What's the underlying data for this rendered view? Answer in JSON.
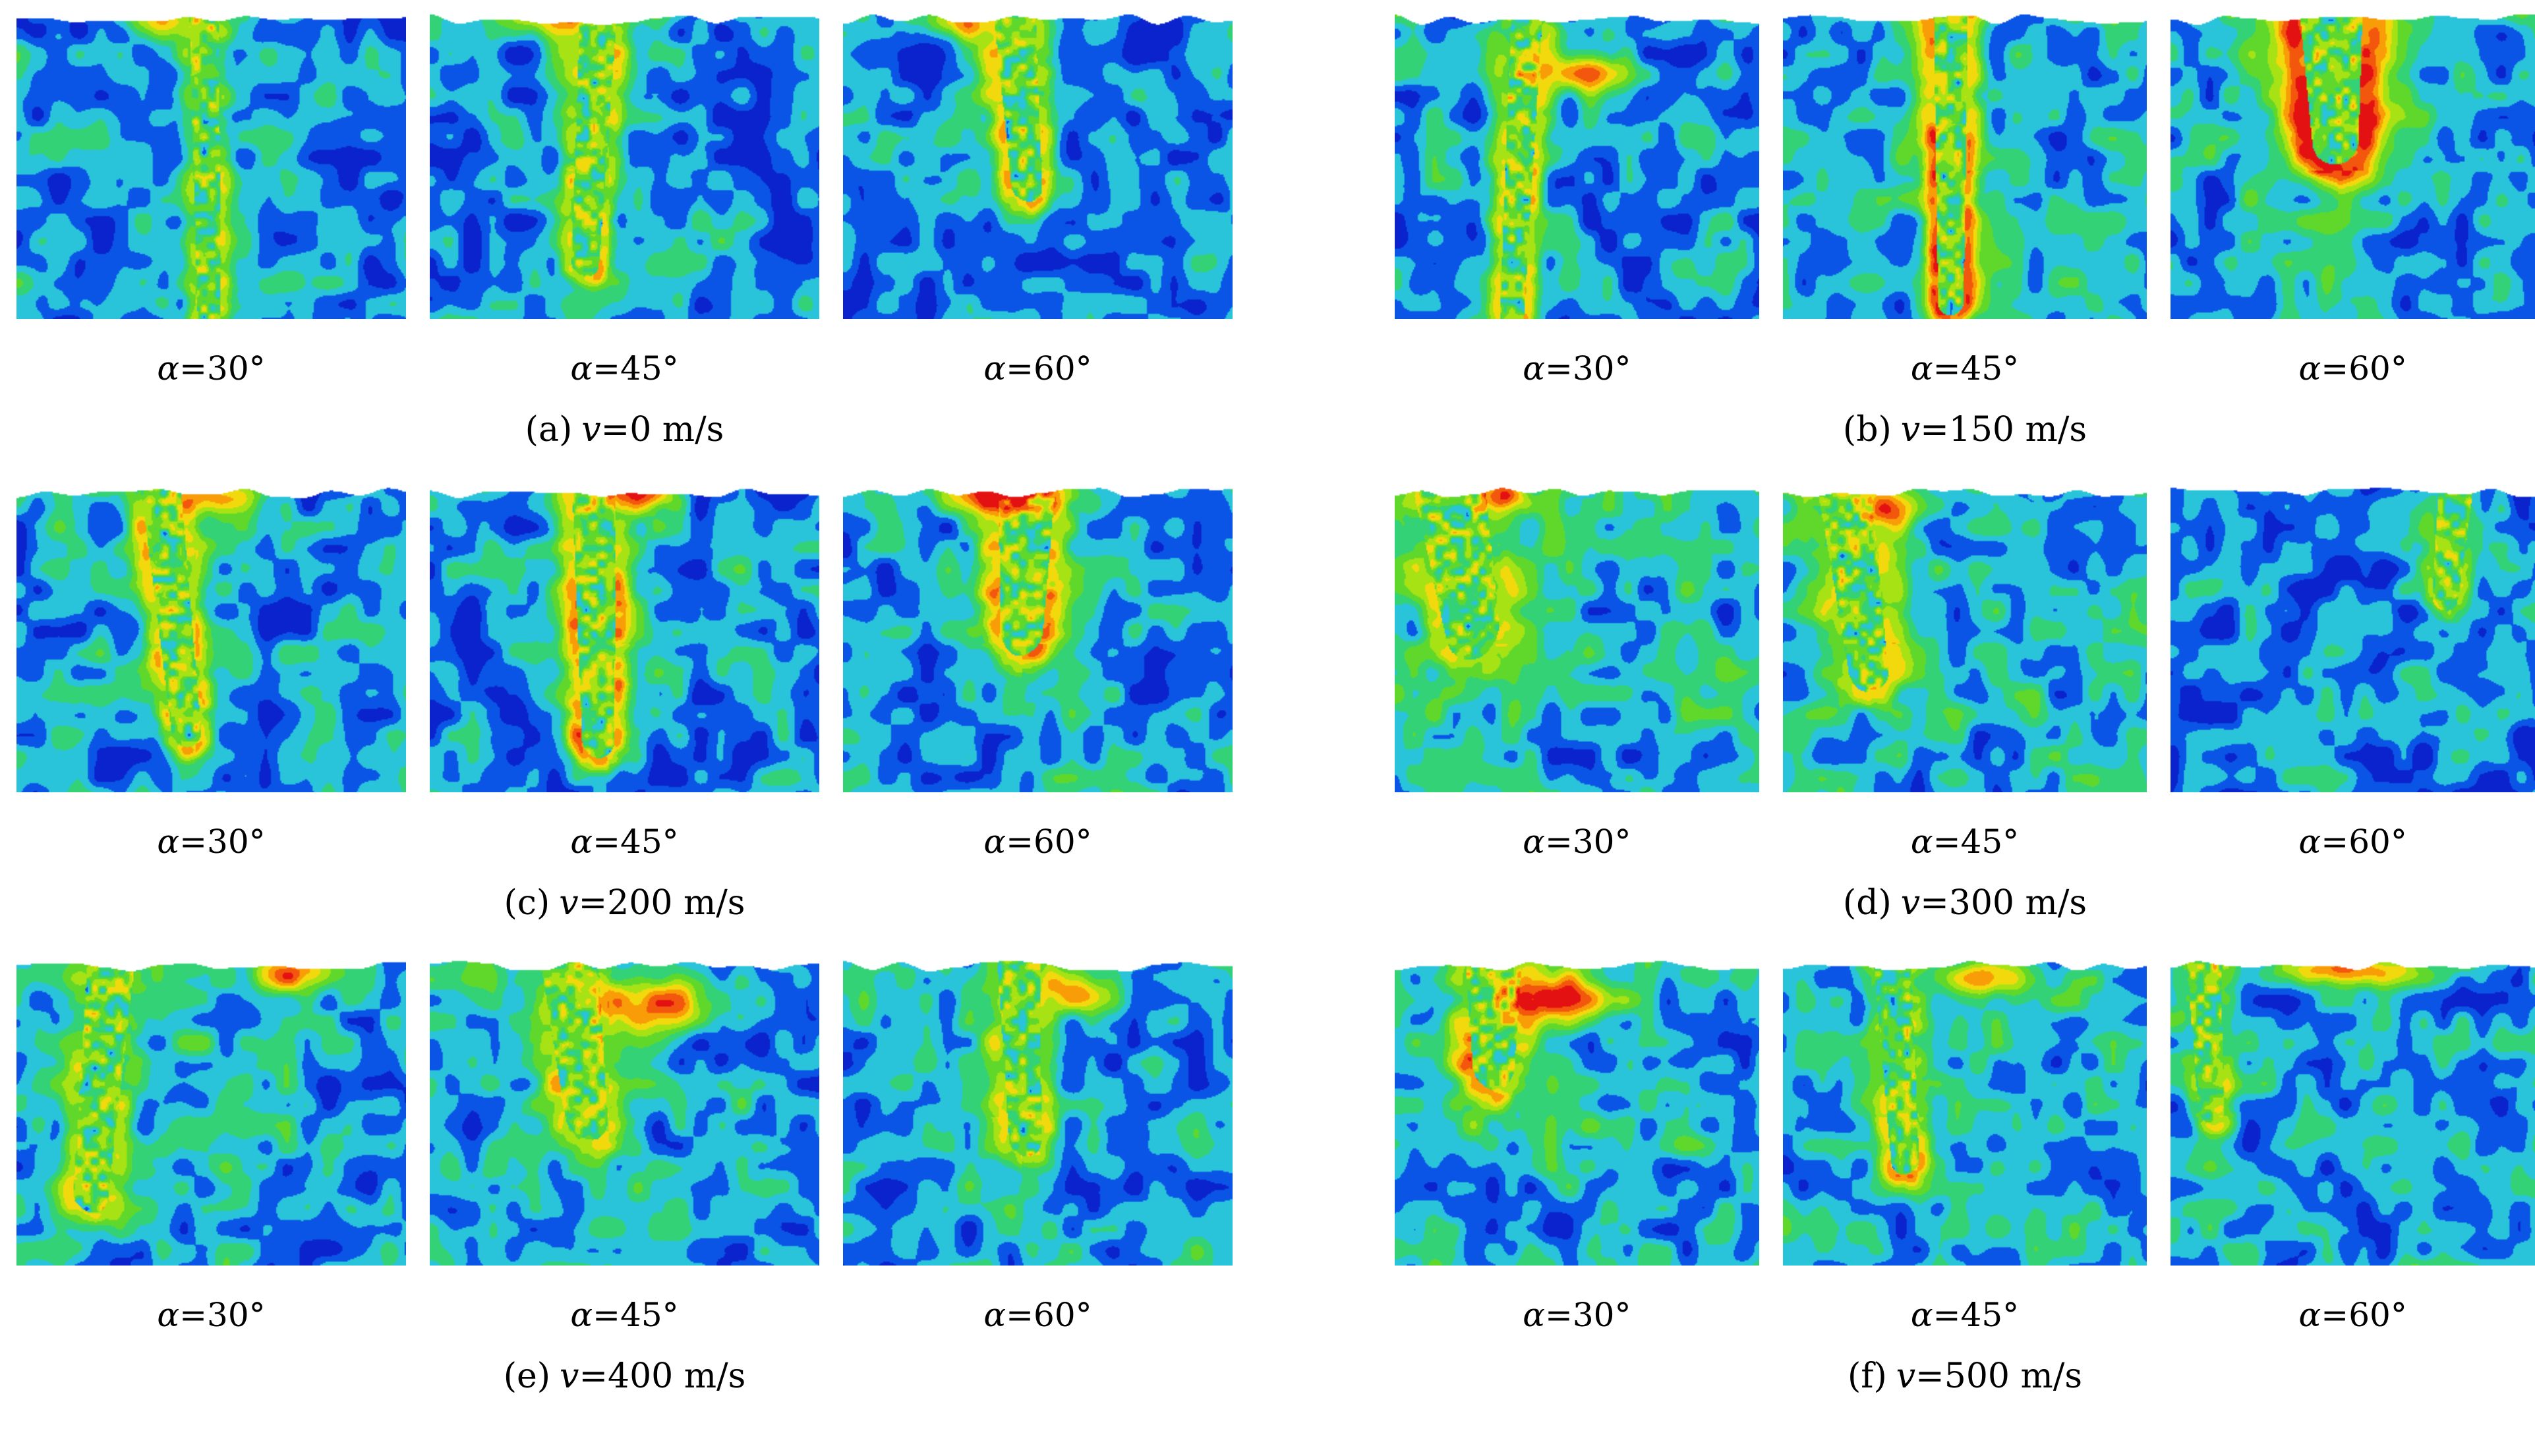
{
  "figure": {
    "colormap": [
      "#0a23cc",
      "#0b55e6",
      "#29c3da",
      "#33d277",
      "#5fd82b",
      "#a6e214",
      "#f2d90d",
      "#f89d07",
      "#f2570d",
      "#e31111"
    ],
    "panels": [
      {
        "caption": {
          "index": "(a)",
          "symbol": "v",
          "value": "=0 m/s"
        },
        "images": [
          {
            "label": {
              "symbol": "α",
              "value": "=30°"
            },
            "render": {
              "seed": 101,
              "ex": 0.48,
              "depth": 1.08,
              "rad": 0.045,
              "tilt": 1,
              "ring": 0.34,
              "halo": 0.08,
              "hot": [
                0.36,
                0.03,
                0.09,
                0.05,
                0.3
              ],
              "bias": 0
            }
          },
          {
            "label": {
              "symbol": "α",
              "value": "=45°"
            },
            "render": {
              "seed": 102,
              "ex": 0.43,
              "depth": 0.78,
              "rad": 0.055,
              "tilt": -3,
              "ring": 0.44,
              "halo": 0.1,
              "hot": [
                0.3,
                0.03,
                0.1,
                0.05,
                0.32
              ],
              "bias": 0
            }
          },
          {
            "label": {
              "symbol": "α",
              "value": "=60°"
            },
            "render": {
              "seed": 103,
              "ex": 0.44,
              "depth": 0.55,
              "rad": 0.062,
              "tilt": 4,
              "ring": 0.46,
              "halo": 0.12,
              "hot": [
                0.3,
                0.03,
                0.09,
                0.05,
                0.5
              ],
              "bias": 0
            }
          }
        ]
      },
      {
        "caption": {
          "index": "(b)",
          "symbol": "v",
          "value": "=150 m/s"
        },
        "images": [
          {
            "label": {
              "symbol": "α",
              "value": "=30°"
            },
            "render": {
              "seed": 104,
              "ex": 0.36,
              "depth": 1.08,
              "rad": 0.05,
              "tilt": -3,
              "ring": 0.42,
              "halo": 0.1,
              "hot": [
                0.52,
                0.2,
                0.13,
                0.06,
                0.55
              ],
              "bias": 0
            }
          },
          {
            "label": {
              "symbol": "α",
              "value": "=45°"
            },
            "render": {
              "seed": 105,
              "ex": 0.46,
              "depth": 0.93,
              "rad": 0.055,
              "tilt": 0,
              "ring": 0.52,
              "halo": 0.24,
              "hot": null,
              "bias": 0.02
            }
          },
          {
            "label": {
              "symbol": "α",
              "value": "=60°"
            },
            "render": {
              "seed": 106,
              "ex": 0.44,
              "depth": 0.4,
              "rad": 0.1,
              "tilt": 2,
              "ring": 0.62,
              "halo": 0.32,
              "hot": null,
              "bias": 0.02
            }
          }
        ]
      },
      {
        "caption": {
          "index": "(c)",
          "symbol": "v",
          "value": "=200 m/s"
        },
        "images": [
          {
            "label": {
              "symbol": "α",
              "value": "=30°"
            },
            "render": {
              "seed": 107,
              "ex": 0.37,
              "depth": 0.78,
              "rad": 0.06,
              "tilt": 6,
              "ring": 0.48,
              "halo": 0.12,
              "hot": [
                0.52,
                0.03,
                0.1,
                0.05,
                0.42
              ],
              "bias": 0
            }
          },
          {
            "label": {
              "symbol": "α",
              "value": "=45°"
            },
            "render": {
              "seed": 108,
              "ex": 0.42,
              "depth": 0.8,
              "rad": 0.065,
              "tilt": 1,
              "ring": 0.54,
              "halo": 0.15,
              "hot": [
                0.54,
                0.03,
                0.09,
                0.05,
                0.5
              ],
              "bias": 0
            }
          },
          {
            "label": {
              "symbol": "α",
              "value": "=60°"
            },
            "render": {
              "seed": 109,
              "ex": 0.47,
              "depth": 0.45,
              "rad": 0.085,
              "tilt": -2,
              "ring": 0.52,
              "halo": 0.18,
              "hot": [
                0.4,
                0.02,
                0.15,
                0.06,
                0.62
              ],
              "bias": 0
            }
          }
        ]
      },
      {
        "caption": {
          "index": "(d)",
          "symbol": "v",
          "value": "=300 m/s"
        },
        "images": [
          {
            "label": {
              "symbol": "α",
              "value": "=30°"
            },
            "render": {
              "seed": 110,
              "ex": 0.15,
              "depth": 0.45,
              "rad": 0.115,
              "tilt": 10,
              "ring": 0.28,
              "halo": 0.08,
              "hot": [
                0.3,
                0.04,
                0.07,
                0.05,
                0.55
              ],
              "bias": 0.05
            }
          },
          {
            "label": {
              "symbol": "α",
              "value": "=45°"
            },
            "render": {
              "seed": 111,
              "ex": 0.17,
              "depth": 0.58,
              "rad": 0.085,
              "tilt": 8,
              "ring": 0.3,
              "halo": 0.08,
              "hot": [
                0.3,
                0.08,
                0.07,
                0.06,
                0.45
              ],
              "bias": 0.05
            }
          },
          {
            "label": {
              "symbol": "α",
              "value": "=60°"
            },
            "render": {
              "seed": 112,
              "ex": 0.78,
              "depth": 0.34,
              "rad": 0.055,
              "tilt": -6,
              "ring": 0.26,
              "halo": 0.05,
              "hot": null,
              "bias": -0.02
            }
          }
        ]
      },
      {
        "caption": {
          "index": "(e)",
          "symbol": "v",
          "value": "=400 m/s"
        },
        "images": [
          {
            "label": {
              "symbol": "α",
              "value": "=30°"
            },
            "render": {
              "seed": 113,
              "ex": 0.24,
              "depth": 0.75,
              "rad": 0.07,
              "tilt": -5,
              "ring": 0.3,
              "halo": 0.08,
              "hot": [
                0.72,
                0.05,
                0.13,
                0.06,
                0.55
              ],
              "bias": 0.04
            }
          },
          {
            "label": {
              "symbol": "α",
              "value": "=45°"
            },
            "render": {
              "seed": 114,
              "ex": 0.36,
              "depth": 0.5,
              "rad": 0.085,
              "tilt": 6,
              "ring": 0.36,
              "halo": 0.1,
              "hot": [
                0.58,
                0.15,
                0.12,
                0.09,
                0.62
              ],
              "bias": 0.03
            }
          },
          {
            "label": {
              "symbol": "α",
              "value": "=60°"
            },
            "render": {
              "seed": 115,
              "ex": 0.45,
              "depth": 0.58,
              "rad": 0.065,
              "tilt": 2,
              "ring": 0.36,
              "halo": 0.1,
              "hot": [
                0.6,
                0.1,
                0.08,
                0.07,
                0.45
              ],
              "bias": 0.02
            }
          }
        ]
      },
      {
        "caption": {
          "index": "(f)",
          "symbol": "v",
          "value": "=500 m/s"
        },
        "images": [
          {
            "label": {
              "symbol": "α",
              "value": "=30°"
            },
            "render": {
              "seed": 116,
              "ex": 0.27,
              "depth": 0.32,
              "rad": 0.09,
              "tilt": 0,
              "ring": 0.4,
              "halo": 0.08,
              "hot": [
                0.45,
                0.12,
                0.15,
                0.09,
                0.62
              ],
              "bias": 0.05
            }
          },
          {
            "label": {
              "symbol": "α",
              "value": "=45°"
            },
            "render": {
              "seed": 117,
              "ex": 0.3,
              "depth": 0.62,
              "rad": 0.06,
              "tilt": 4,
              "ring": 0.36,
              "halo": 0.08,
              "hot": [
                0.55,
                0.06,
                0.12,
                0.06,
                0.5
              ],
              "bias": 0.04
            }
          },
          {
            "label": {
              "symbol": "α",
              "value": "=60°"
            },
            "render": {
              "seed": 118,
              "ex": 0.09,
              "depth": 0.48,
              "rad": 0.055,
              "tilt": 3,
              "ring": 0.26,
              "halo": 0.05,
              "hot": [
                0.48,
                0.03,
                0.22,
                0.05,
                0.58
              ],
              "bias": 0.01
            }
          }
        ]
      }
    ]
  }
}
